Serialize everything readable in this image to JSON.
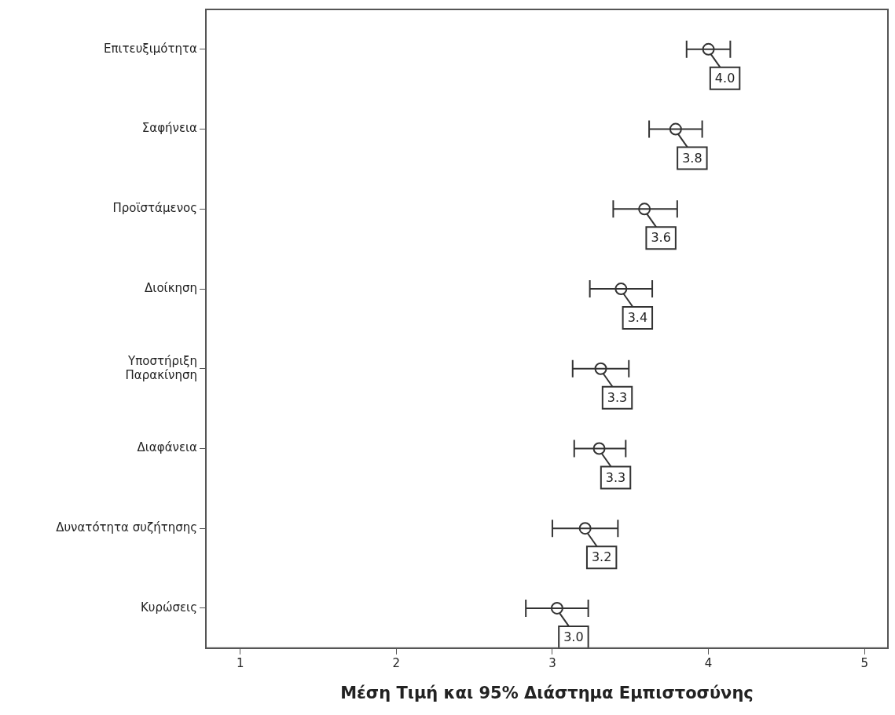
{
  "chart_data": {
    "type": "scatter",
    "orientation": "horizontal",
    "xlabel": "Μέση Τιμή και 95% Διάστημα Εμπιστοσύνης",
    "categories": [
      "Επιτευξιμότητα",
      "Σαφήνεια",
      "Προϊστάμενος",
      "Διοίκηση",
      "Υποστήριξη\nΠαρακίνηση",
      "Διαφάνεια",
      "Δυνατότητα συζήτησης",
      "Κυρώσεις"
    ],
    "values": [
      4.0,
      3.79,
      3.59,
      3.44,
      3.31,
      3.3,
      3.21,
      3.03
    ],
    "errors": [
      [
        3.86,
        4.14
      ],
      [
        3.62,
        3.96
      ],
      [
        3.39,
        3.8
      ],
      [
        3.24,
        3.64
      ],
      [
        3.13,
        3.49
      ],
      [
        3.14,
        3.47
      ],
      [
        3.0,
        3.42
      ],
      [
        2.83,
        3.23
      ]
    ],
    "value_labels": [
      "4.0",
      "3.8",
      "3.6",
      "3.4",
      "3.3",
      "3.3",
      "3.2",
      "3.0"
    ],
    "color": "#333333",
    "marker": "circle",
    "grid": false,
    "legend": false,
    "xlim": [
      0.78,
      5.15
    ],
    "xticks": [
      1,
      2,
      3,
      4,
      5
    ]
  }
}
